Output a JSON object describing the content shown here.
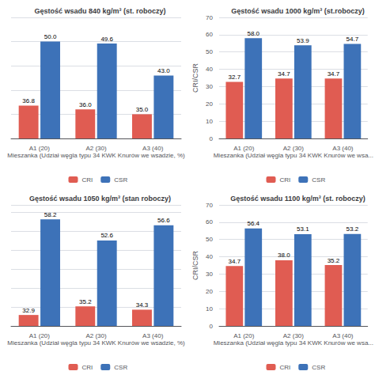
{
  "chart_data": [
    {
      "type": "bar",
      "title": "Gęstość wsadu 840 kg/m³ (st. roboczy)",
      "categories": [
        "A1 (20)",
        "A2 (30)",
        "A3 (40)"
      ],
      "series": [
        {
          "name": "CRI",
          "color": "#e05c52",
          "values": [
            36.8,
            36.0,
            35.0
          ],
          "value_labels": [
            "36.8",
            "36.0",
            "35.0"
          ]
        },
        {
          "name": "CSR",
          "color": "#3d72b8",
          "values": [
            50.0,
            49.6,
            43.0
          ],
          "value_labels": [
            "50.0",
            "49.6",
            "43.0"
          ]
        }
      ],
      "xlabel": "Mieszanka (Udział węgla typu 34 KWK Knurów we wsadzie, %)",
      "ylim": [
        30,
        55
      ],
      "yticks": [
        30,
        35,
        40,
        45,
        50,
        55
      ],
      "tick_labels": "x",
      "grid": true,
      "legend": "bottom",
      "data_labels": true
    },
    {
      "type": "bar",
      "title": "Gęstość wsadu 1000 kg/m³ (st.roboczy)",
      "categories": [
        "A1 (20)",
        "A2 (30)",
        "A3 (40)"
      ],
      "series": [
        {
          "name": "CRI",
          "color": "#e05c52",
          "values": [
            32.7,
            34.7,
            34.7
          ],
          "value_labels": [
            "32.7",
            "34.7",
            "34.7"
          ]
        },
        {
          "name": "CSR",
          "color": "#3d72b8",
          "values": [
            58.0,
            53.9,
            54.7
          ],
          "value_labels": [
            "58.0",
            "53.9",
            "54.7"
          ]
        }
      ],
      "xlabel": "Mieszanka (Udział węgla typu 34 KWK Knurów we wsa...",
      "ylabel": "CRI/CSR",
      "ylim": [
        0,
        70
      ],
      "yticks": [
        0,
        10,
        20,
        30,
        40,
        50,
        60,
        70
      ],
      "grid": true,
      "legend": "bottom",
      "data_labels": true
    },
    {
      "type": "bar",
      "title": "Gęstość wsadu 1050 kg/m³ (stan roboczy)",
      "categories": [
        "A1 (20)",
        "A2 (30)",
        "A3 (40)"
      ],
      "series": [
        {
          "name": "CRI",
          "color": "#e05c52",
          "values": [
            32.9,
            35.2,
            34.3
          ],
          "value_labels": [
            "32.9",
            "35.2",
            "34.3"
          ]
        },
        {
          "name": "CSR",
          "color": "#3d72b8",
          "values": [
            58.2,
            52.6,
            56.6
          ],
          "value_labels": [
            "58.2",
            "52.6",
            "56.6"
          ]
        }
      ],
      "xlabel": "Mieszanka (Udział węgla typu 34 KWK Knurów we wsadzie, %)",
      "ylim": [
        30,
        62
      ],
      "yticks": [
        30,
        35,
        40,
        45,
        50,
        55,
        60
      ],
      "tick_labels": "x",
      "grid": true,
      "legend": "bottom",
      "data_labels": true
    },
    {
      "type": "bar",
      "title": "Gęstość wsadu 1100 kg/m³ (st. roboczy)",
      "categories": [
        "A1 (20)",
        "A2 (30)",
        "A3 (40)"
      ],
      "series": [
        {
          "name": "CRI",
          "color": "#e05c52",
          "values": [
            34.7,
            38.0,
            35.2
          ],
          "value_labels": [
            "34.7",
            "38.0",
            "35.2"
          ]
        },
        {
          "name": "CSR",
          "color": "#3d72b8",
          "values": [
            56.4,
            53.1,
            53.2
          ],
          "value_labels": [
            "56.4",
            "53.1",
            "53.2"
          ]
        }
      ],
      "xlabel": "Mieszanka (Udział węgla typu 34 KWK Knurów we wsa...",
      "ylabel": "CRI/CSR",
      "ylim": [
        0,
        70
      ],
      "yticks": [
        0,
        10,
        20,
        30,
        40,
        50,
        60,
        70
      ],
      "grid": true,
      "legend": "bottom",
      "data_labels": true
    }
  ]
}
